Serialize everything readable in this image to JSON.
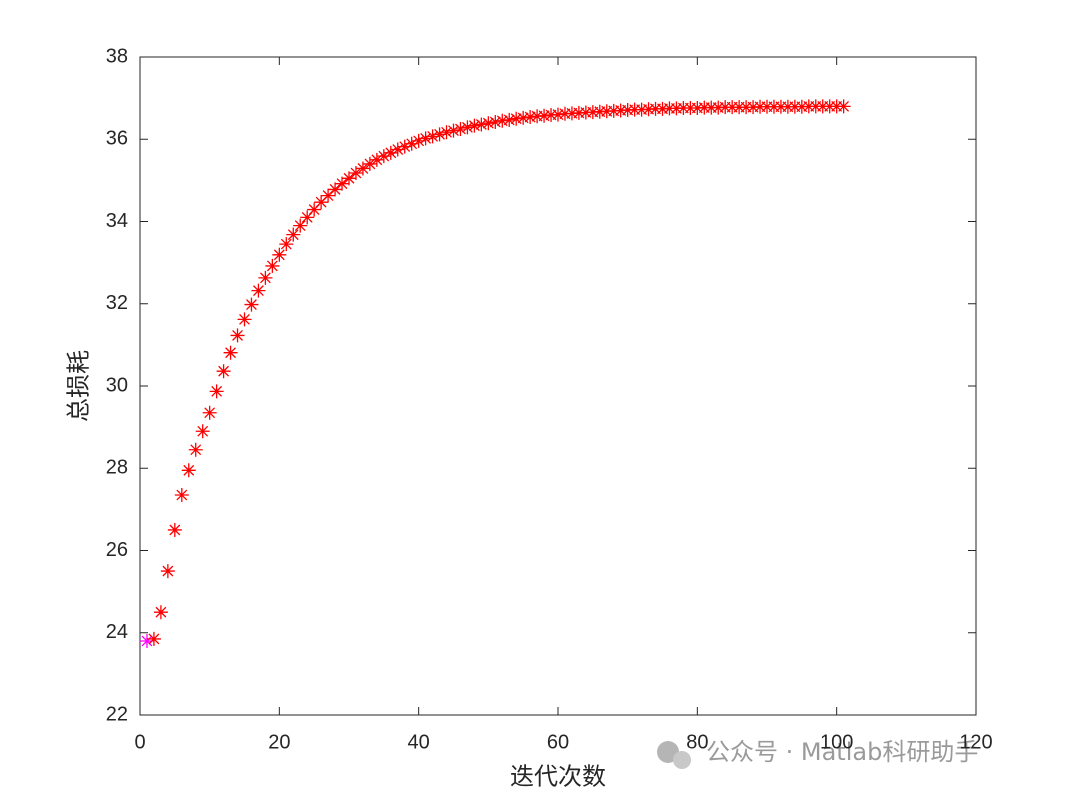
{
  "chart_data": {
    "type": "scatter",
    "xlabel": "迭代次数",
    "ylabel": "总损耗",
    "xlim": [
      0,
      120
    ],
    "xticks": [
      0,
      20,
      40,
      60,
      80,
      100,
      120
    ],
    "ylim": [
      22,
      38
    ],
    "yticks": [
      22,
      24,
      26,
      28,
      30,
      32,
      34,
      36,
      38
    ],
    "series": [
      {
        "color": "#ff00ff",
        "marker": "asterisk",
        "x": [
          1
        ],
        "values": [
          23.8
        ]
      },
      {
        "color": "#ff0000",
        "marker": "asterisk",
        "x": [
          2,
          3,
          4,
          5,
          6,
          7,
          8,
          9,
          10,
          11,
          12,
          13,
          14,
          15,
          16,
          17,
          18,
          19,
          20,
          21,
          22,
          23,
          24,
          25,
          26,
          27,
          28,
          29,
          30,
          31,
          32,
          33,
          34,
          35,
          36,
          37,
          38,
          39,
          40,
          41,
          42,
          43,
          44,
          45,
          46,
          47,
          48,
          49,
          50,
          51,
          52,
          53,
          54,
          55,
          56,
          57,
          58,
          59,
          60,
          61,
          62,
          63,
          64,
          65,
          66,
          67,
          68,
          69,
          70,
          71,
          72,
          73,
          74,
          75,
          76,
          77,
          78,
          79,
          80,
          81,
          82,
          83,
          84,
          85,
          86,
          87,
          88,
          89,
          90,
          91,
          92,
          93,
          94,
          95,
          96,
          97,
          98,
          99,
          100,
          101
        ],
        "values": [
          23.85,
          24.5,
          25.5,
          26.5,
          27.35,
          27.95,
          28.45,
          28.9,
          29.35,
          29.87,
          30.36,
          30.81,
          31.23,
          31.62,
          31.98,
          32.32,
          32.63,
          32.92,
          33.19,
          33.45,
          33.68,
          33.9,
          34.1,
          34.29,
          34.47,
          34.63,
          34.78,
          34.92,
          35.05,
          35.18,
          35.29,
          35.4,
          35.5,
          35.59,
          35.67,
          35.75,
          35.82,
          35.89,
          35.96,
          36.02,
          36.07,
          36.12,
          36.17,
          36.21,
          36.25,
          36.29,
          36.33,
          36.36,
          36.39,
          36.42,
          36.45,
          36.47,
          36.5,
          36.52,
          36.54,
          36.56,
          36.57,
          36.59,
          36.6,
          36.62,
          36.63,
          36.64,
          36.65,
          36.66,
          36.67,
          36.68,
          36.69,
          36.7,
          36.71,
          36.72,
          36.72,
          36.73,
          36.74,
          36.74,
          36.75,
          36.75,
          36.76,
          36.76,
          36.76,
          36.77,
          36.77,
          36.77,
          36.78,
          36.78,
          36.78,
          36.78,
          36.78,
          36.79,
          36.79,
          36.79,
          36.79,
          36.79,
          36.79,
          36.79,
          36.8,
          36.8,
          36.8,
          36.8,
          36.8,
          36.8
        ]
      }
    ],
    "watermark": "公众号 · Matlab科研助手"
  }
}
